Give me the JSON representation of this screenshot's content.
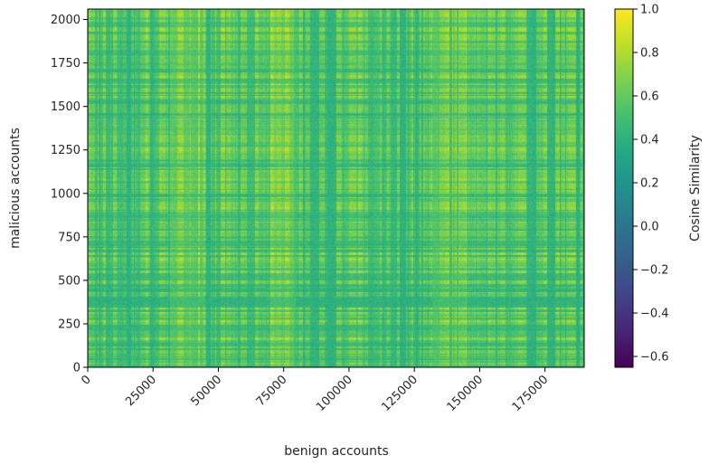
{
  "chart_data": {
    "type": "heatmap",
    "title": "",
    "xlabel": "benign accounts",
    "ylabel": "malicious accounts",
    "xlim": [
      0,
      190000
    ],
    "ylim": [
      0,
      2060
    ],
    "xticks": [
      0,
      25000,
      50000,
      75000,
      100000,
      125000,
      150000,
      175000
    ],
    "xtick_labels": [
      "0",
      "25000",
      "50000",
      "75000",
      "100000",
      "125000",
      "150000",
      "175000"
    ],
    "yticks": [
      0,
      250,
      500,
      750,
      1000,
      1250,
      1500,
      1750,
      2000
    ],
    "ytick_labels": [
      "0",
      "250",
      "500",
      "750",
      "1000",
      "1250",
      "1500",
      "1750",
      "2000"
    ],
    "colormap": "viridis",
    "colorbar": {
      "label": "Cosine Similarity",
      "range": [
        -0.65,
        1.0
      ],
      "ticks": [
        -0.6,
        -0.4,
        -0.2,
        0.0,
        0.2,
        0.4,
        0.6,
        0.8,
        1.0
      ],
      "tick_labels": [
        "−0.6",
        "−0.4",
        "−0.2",
        "0.0",
        "0.2",
        "0.4",
        "0.6",
        "0.8",
        "1.0"
      ]
    },
    "value_range_observed": [
      -0.3,
      1.0
    ],
    "grid": false,
    "legend": "none"
  }
}
